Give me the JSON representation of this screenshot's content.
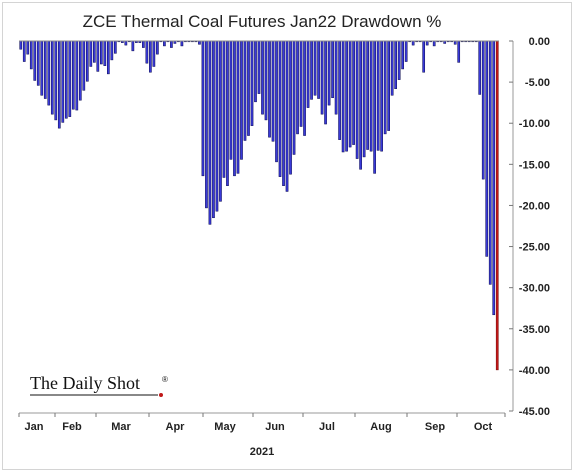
{
  "chart_data": {
    "type": "bar",
    "title": "ZCE Thermal Coal Futures Jan22 Drawdown %",
    "xlabel": "2021",
    "ylabel": "",
    "ylim": [
      -45,
      0
    ],
    "yticks": [
      0,
      -5,
      -10,
      -15,
      -20,
      -25,
      -30,
      -35,
      -40,
      -45
    ],
    "ytick_labels": [
      "0.00",
      "-5.00",
      "-10.00",
      "-15.00",
      "-20.00",
      "-25.00",
      "-30.00",
      "-35.00",
      "-40.00",
      "-45.00"
    ],
    "y_axis_position": "right",
    "grid": false,
    "x_tick_labels": [
      "Jan",
      "Feb",
      "Mar",
      "Apr",
      "May",
      "Jun",
      "Jul",
      "Aug",
      "Sep",
      "Oct"
    ],
    "series": [
      {
        "values": [
          -1.0,
          -2.5,
          -1.6,
          -3.4,
          -4.8,
          -5.4,
          -6.6,
          -7.0,
          -7.8,
          -8.9,
          -9.6,
          -10.6,
          -9.9,
          -9.4,
          -9.2,
          -8.3,
          -8.4,
          -7.2,
          -6.0,
          -4.9,
          -3.1,
          -2.6,
          -3.7,
          -2.8,
          -3.0,
          -4.0,
          -2.3,
          -1.5,
          -0.1,
          -0.2,
          -0.5,
          -0.1,
          -1.2,
          -0.2,
          -0.2,
          -0.8,
          -2.7,
          -3.8,
          -3.1,
          -1.6,
          -0.1,
          -0.6,
          -0.1,
          -0.8,
          -0.3,
          -0.1,
          -0.6,
          -0.1,
          -0.1,
          -0.1,
          -0.1,
          -0.4,
          -16.4,
          -20.3,
          -22.3,
          -21.5,
          -20.7,
          -19.5,
          -16.6,
          -17.6,
          -14.4,
          -16.4,
          -16.1,
          -14.4,
          -12.1,
          -11.5,
          -10.3,
          -7.4,
          -6.4,
          -8.9,
          -9.6,
          -11.7,
          -12.2,
          -14.7,
          -16.5,
          -17.6,
          -18.3,
          -16.2,
          -13.8,
          -11.3,
          -10.4,
          -11.5,
          -8.1,
          -7.1,
          -6.6,
          -7.0,
          -8.9,
          -10.1,
          -7.8,
          -6.9,
          -8.9,
          -12.0,
          -13.5,
          -13.4,
          -12.9,
          -12.6,
          -14.3,
          -15.6,
          -14.1,
          -13.2,
          -13.4,
          -16.1,
          -13.3,
          -13.4,
          -11.3,
          -10.9,
          -6.6,
          -5.8,
          -4.7,
          -3.4,
          -2.5,
          -0.1,
          -0.5,
          -0.1,
          -0.1,
          -3.8,
          -0.5,
          -0.1,
          -0.6,
          -0.1,
          -0.1,
          -0.3,
          -0.1,
          -0.1,
          -0.4,
          -2.6,
          -0.1,
          -0.1,
          -0.1,
          -0.1,
          -0.1,
          -6.5,
          -16.8,
          -26.2,
          -29.6,
          -33.3,
          -40.0
        ]
      }
    ],
    "bar_color": "#3a3ad8",
    "last_bar_color": "#c01818",
    "branding": "The Daily Shot"
  }
}
